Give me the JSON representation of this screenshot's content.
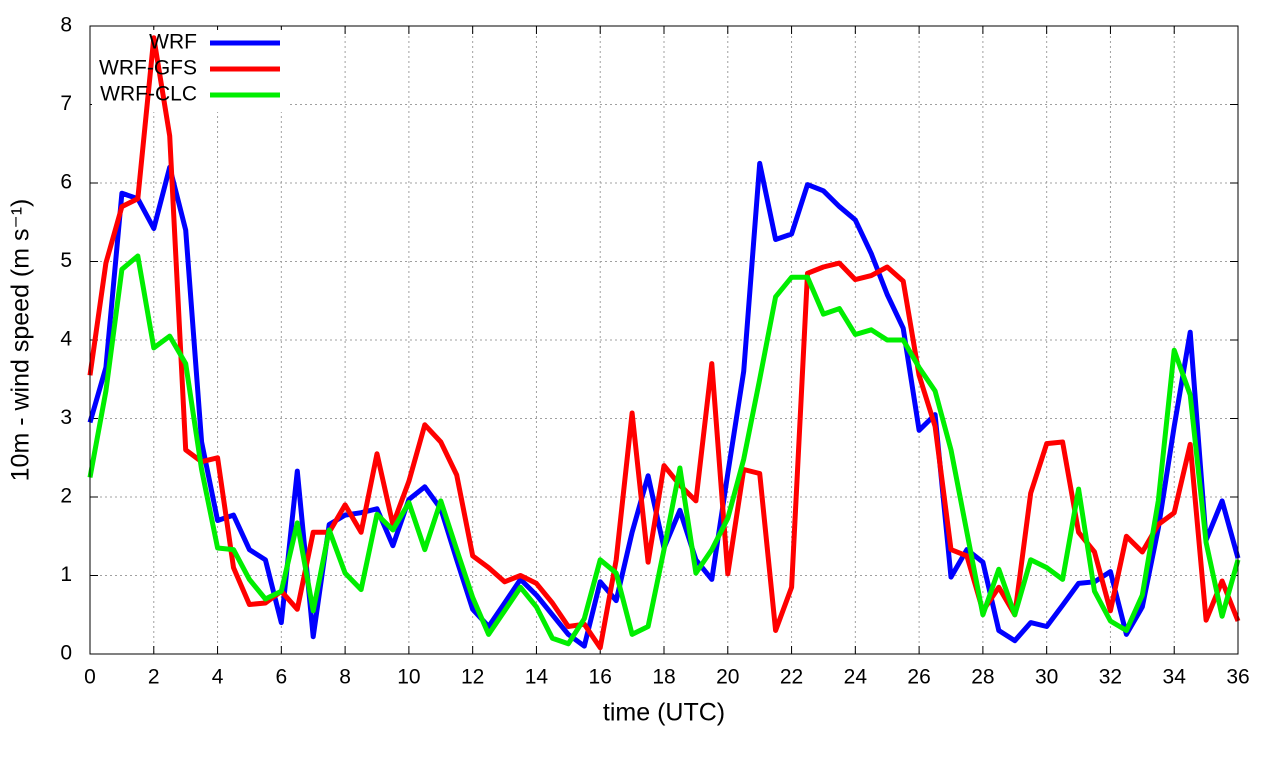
{
  "chart_data": {
    "type": "line",
    "xlabel": "time (UTC)",
    "ylabel": "10m - wind speed  (m s⁻¹)",
    "x": [
      0,
      0.5,
      1,
      1.5,
      2,
      2.5,
      3,
      3.5,
      4,
      4.5,
      5,
      5.5,
      6,
      6.5,
      7,
      7.5,
      8,
      8.5,
      9,
      9.5,
      10,
      10.5,
      11,
      11.5,
      12,
      12.5,
      13,
      13.5,
      14,
      14.5,
      15,
      15.5,
      16,
      16.5,
      17,
      17.5,
      18,
      18.5,
      19,
      19.5,
      20,
      20.5,
      21,
      21.5,
      22,
      22.5,
      23,
      23.5,
      24,
      24.5,
      25,
      25.5,
      26,
      26.5,
      27,
      27.5,
      28,
      28.5,
      29,
      29.5,
      30,
      30.5,
      31,
      31.5,
      32,
      32.5,
      33,
      33.5,
      34,
      34.5,
      35,
      35.5,
      36
    ],
    "series": [
      {
        "name": "WRF",
        "color": "#0000ff",
        "values": [
          2.95,
          3.65,
          5.87,
          5.8,
          5.42,
          6.2,
          5.4,
          2.7,
          1.7,
          1.77,
          1.33,
          1.2,
          0.4,
          2.33,
          0.22,
          1.65,
          1.77,
          1.8,
          1.85,
          1.38,
          1.97,
          2.13,
          1.85,
          1.2,
          0.57,
          0.35,
          0.65,
          0.95,
          0.75,
          0.5,
          0.25,
          0.1,
          0.92,
          0.68,
          1.55,
          2.27,
          1.35,
          1.83,
          1.2,
          0.95,
          2.3,
          3.6,
          6.25,
          5.28,
          5.35,
          5.98,
          5.9,
          5.7,
          5.53,
          5.1,
          4.58,
          4.15,
          2.85,
          3.05,
          0.98,
          1.33,
          1.17,
          0.3,
          0.17,
          0.4,
          0.35,
          0.62,
          0.9,
          0.92,
          1.05,
          0.25,
          0.6,
          1.6,
          2.9,
          4.1,
          1.45,
          1.95,
          1.22
        ]
      },
      {
        "name": "WRF-GFS",
        "color": "#ff0000",
        "values": [
          3.55,
          4.98,
          5.7,
          5.8,
          7.85,
          6.6,
          2.6,
          2.45,
          2.5,
          1.1,
          0.63,
          0.65,
          0.8,
          0.57,
          1.55,
          1.55,
          1.9,
          1.55,
          2.55,
          1.65,
          2.2,
          2.92,
          2.7,
          2.28,
          1.25,
          1.1,
          0.92,
          1.0,
          0.9,
          0.65,
          0.35,
          0.38,
          0.08,
          1.2,
          3.07,
          1.17,
          2.4,
          2.15,
          1.95,
          3.7,
          1.02,
          2.35,
          2.3,
          0.3,
          0.85,
          4.85,
          4.93,
          4.98,
          4.77,
          4.82,
          4.93,
          4.75,
          3.55,
          2.9,
          1.33,
          1.25,
          0.55,
          0.85,
          0.5,
          2.05,
          2.68,
          2.7,
          1.55,
          1.3,
          0.55,
          1.5,
          1.3,
          1.65,
          1.8,
          2.67,
          0.43,
          0.93,
          0.42
        ]
      },
      {
        "name": "WRF-CLC",
        "color": "#00ee00",
        "values": [
          2.25,
          3.35,
          4.9,
          5.07,
          3.9,
          4.05,
          3.7,
          2.35,
          1.35,
          1.33,
          0.95,
          0.7,
          0.8,
          1.67,
          0.55,
          1.58,
          1.03,
          0.82,
          1.78,
          1.58,
          1.93,
          1.33,
          1.95,
          1.33,
          0.72,
          0.25,
          0.55,
          0.85,
          0.6,
          0.2,
          0.13,
          0.45,
          1.2,
          1.03,
          0.25,
          0.35,
          1.33,
          2.37,
          1.03,
          1.33,
          1.73,
          2.48,
          3.5,
          4.55,
          4.8,
          4.8,
          4.33,
          4.4,
          4.07,
          4.13,
          4.0,
          4.0,
          3.65,
          3.35,
          2.6,
          1.55,
          0.5,
          1.08,
          0.5,
          1.2,
          1.1,
          0.95,
          2.1,
          0.8,
          0.42,
          0.3,
          0.75,
          1.95,
          3.87,
          3.3,
          1.42,
          0.48,
          1.2
        ]
      }
    ],
    "xlim": [
      0,
      36
    ],
    "xticks": [
      0,
      2,
      4,
      6,
      8,
      10,
      12,
      14,
      16,
      18,
      20,
      22,
      24,
      26,
      28,
      30,
      32,
      34,
      36
    ],
    "ylim": [
      0,
      8
    ],
    "yticks": [
      0,
      1,
      2,
      3,
      4,
      5,
      6,
      7,
      8
    ],
    "grid": true,
    "legend": "top-left"
  }
}
